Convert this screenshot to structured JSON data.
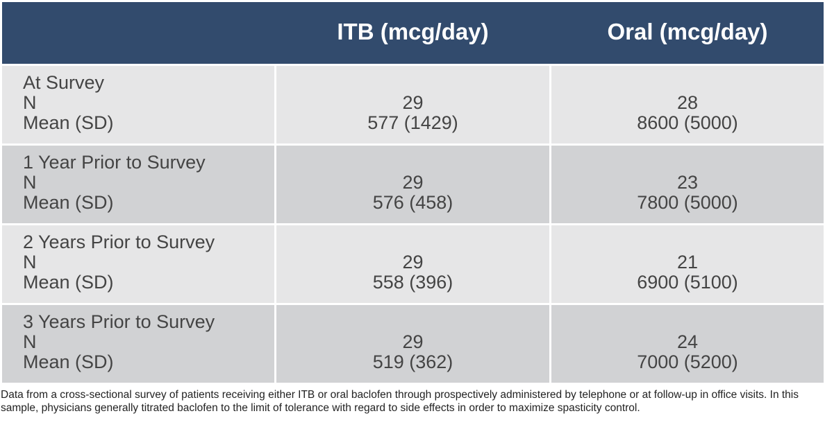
{
  "header": {
    "empty": "",
    "itb": "ITB (mcg/day)",
    "oral": "Oral (mcg/day)"
  },
  "rows": [
    {
      "label": "At Survey",
      "n_label": "N",
      "mean_label": "Mean (SD)",
      "itb_n": "29",
      "itb_mean": "577 (1429)",
      "oral_n": "28",
      "oral_mean": "8600 (5000)"
    },
    {
      "label": "1 Year Prior to Survey",
      "n_label": "N",
      "mean_label": "Mean (SD)",
      "itb_n": "29",
      "itb_mean": "576 (458)",
      "oral_n": "23",
      "oral_mean": "7800 (5000)"
    },
    {
      "label": "2 Years Prior to Survey",
      "n_label": "N",
      "mean_label": "Mean (SD)",
      "itb_n": "29",
      "itb_mean": "558 (396)",
      "oral_n": "21",
      "oral_mean": "6900 (5100)"
    },
    {
      "label": "3 Years Prior to Survey",
      "n_label": "N",
      "mean_label": "Mean (SD)",
      "itb_n": "29",
      "itb_mean": "519 (362)",
      "oral_n": "24",
      "oral_mean": "7000 (5200)"
    }
  ],
  "caption": "Data from a cross-sectional survey of patients receiving either ITB or oral baclofen through prospectively administered by telephone or at follow-up in office visits. In this sample, physicians generally titrated baclofen to the limit of tolerance with regard to side effects in order to maximize spasticity control.",
  "colors": {
    "header_bg": "#324b6d",
    "row_light": "#e6e6e7",
    "row_dark": "#d1d2d4",
    "text": "#444444"
  }
}
